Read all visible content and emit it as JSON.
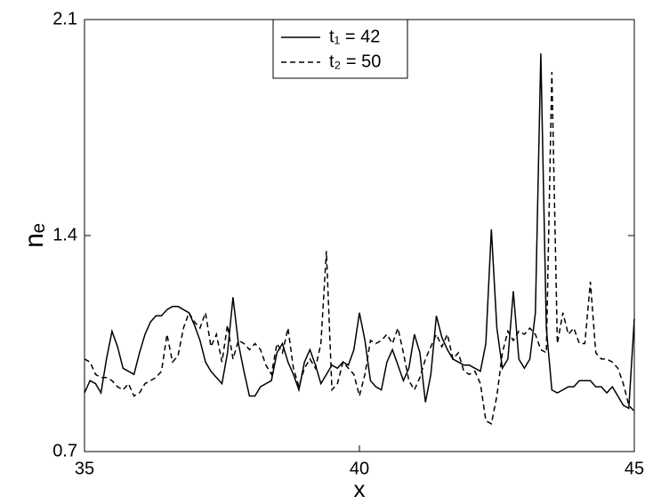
{
  "chart_data": {
    "type": "line",
    "xlabel": "x",
    "ylabel": "nₑ",
    "xlim": [
      35,
      45
    ],
    "xticks": [
      35,
      40,
      45
    ],
    "ylim": [
      0.7,
      2.1
    ],
    "yticks": [
      0.7,
      1.4,
      2.1
    ],
    "x": [
      35.0,
      35.1,
      35.2,
      35.3,
      35.4,
      35.5,
      35.6,
      35.7,
      35.8,
      35.9,
      36.0,
      36.1,
      36.2,
      36.3,
      36.4,
      36.5,
      36.6,
      36.7,
      36.8,
      36.9,
      37.0,
      37.1,
      37.2,
      37.3,
      37.4,
      37.5,
      37.6,
      37.7,
      37.8,
      37.9,
      38.0,
      38.1,
      38.2,
      38.3,
      38.4,
      38.5,
      38.6,
      38.7,
      38.8,
      38.9,
      39.0,
      39.1,
      39.2,
      39.3,
      39.4,
      39.5,
      39.6,
      39.7,
      39.8,
      39.9,
      40.0,
      40.1,
      40.2,
      40.3,
      40.4,
      40.5,
      40.6,
      40.7,
      40.8,
      40.9,
      41.0,
      41.1,
      41.2,
      41.3,
      41.4,
      41.5,
      41.6,
      41.7,
      41.8,
      41.9,
      42.0,
      42.1,
      42.2,
      42.3,
      42.4,
      42.5,
      42.6,
      42.7,
      42.8,
      42.9,
      43.0,
      43.1,
      43.2,
      43.3,
      43.4,
      43.5,
      43.6,
      43.7,
      43.8,
      43.9,
      44.0,
      44.1,
      44.2,
      44.3,
      44.4,
      44.5,
      44.6,
      44.7,
      44.8,
      44.9,
      45.0
    ],
    "series": [
      {
        "name": "t₁ = 42",
        "color": "#000000",
        "dash": "solid",
        "values": [
          0.89,
          0.93,
          0.92,
          0.89,
          1.0,
          1.09,
          1.04,
          0.97,
          0.96,
          0.95,
          1.02,
          1.08,
          1.12,
          1.14,
          1.14,
          1.16,
          1.17,
          1.17,
          1.16,
          1.15,
          1.11,
          1.06,
          0.99,
          0.96,
          0.94,
          0.92,
          1.02,
          1.2,
          1.05,
          0.96,
          0.88,
          0.88,
          0.91,
          0.92,
          0.93,
          1.02,
          1.05,
          0.99,
          0.95,
          0.9,
          0.99,
          1.03,
          0.98,
          0.92,
          0.95,
          0.98,
          0.97,
          0.99,
          0.98,
          1.03,
          1.15,
          1.06,
          0.93,
          0.91,
          0.9,
          0.99,
          1.03,
          0.98,
          0.93,
          0.97,
          1.08,
          1.02,
          0.86,
          0.95,
          1.14,
          1.07,
          1.03,
          1.0,
          0.99,
          0.98,
          0.98,
          0.97,
          0.96,
          1.05,
          1.42,
          1.1,
          0.97,
          1.0,
          1.22,
          1.0,
          0.97,
          1.0,
          1.15,
          1.99,
          1.1,
          0.9,
          0.89,
          0.9,
          0.91,
          0.91,
          0.93,
          0.93,
          0.93,
          0.91,
          0.91,
          0.89,
          0.91,
          0.88,
          0.85,
          0.84,
          1.13
        ]
      },
      {
        "name": "t₂ = 50",
        "color": "#000000",
        "dash": "dashed",
        "values": [
          1.0,
          0.99,
          0.95,
          0.94,
          0.94,
          0.93,
          0.91,
          0.9,
          0.92,
          0.88,
          0.89,
          0.92,
          0.93,
          0.94,
          0.96,
          1.08,
          0.99,
          1.01,
          1.1,
          1.15,
          1.12,
          1.1,
          1.15,
          1.04,
          1.08,
          0.99,
          1.11,
          1.0,
          1.06,
          1.05,
          1.03,
          1.05,
          1.03,
          0.98,
          0.95,
          1.05,
          1.02,
          1.1,
          0.97,
          0.91,
          0.97,
          1.0,
          0.97,
          1.05,
          1.35,
          0.9,
          0.92,
          0.99,
          0.97,
          0.95,
          0.88,
          0.95,
          1.06,
          1.05,
          1.06,
          1.08,
          1.05,
          1.1,
          1.02,
          0.93,
          0.9,
          0.94,
          1.0,
          1.04,
          1.08,
          1.04,
          1.08,
          1.0,
          1.02,
          0.96,
          0.95,
          0.96,
          0.92,
          0.8,
          0.79,
          0.88,
          1.02,
          1.09,
          1.06,
          1.09,
          1.08,
          1.1,
          1.08,
          1.03,
          1.02,
          1.93,
          1.05,
          1.15,
          1.08,
          1.1,
          1.05,
          1.05,
          1.25,
          1.02,
          1.0,
          1.0,
          0.99,
          0.97,
          0.92,
          0.85,
          0.83
        ]
      }
    ]
  }
}
